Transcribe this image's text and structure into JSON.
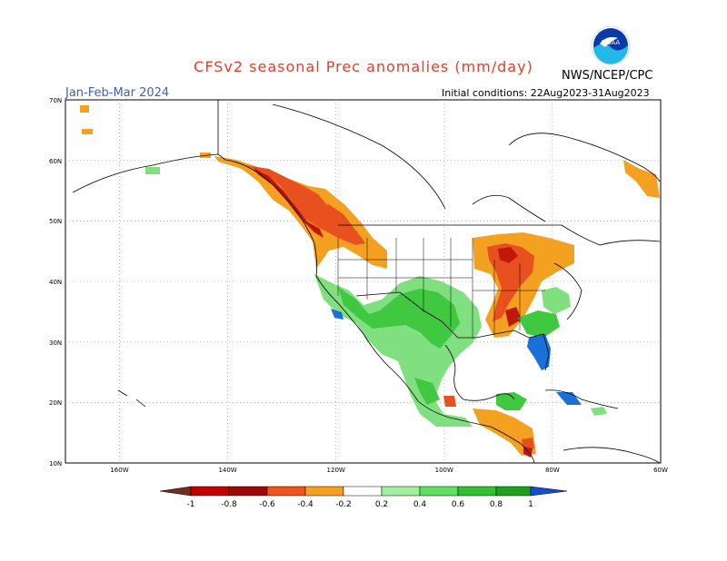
{
  "header": {
    "title": "CFSv2 seasonal Prec anomalies (mm/day)",
    "season": "Jan-Feb-Mar 2024",
    "initial_conditions": "Initial conditions: 22Aug2023-31Aug2023",
    "agency": "NWS/NCEP/CPC",
    "logo_text": "NOAA"
  },
  "map": {
    "lat_labels": [
      "70N",
      "60N",
      "50N",
      "40N",
      "30N",
      "20N",
      "10N"
    ],
    "lon_labels": [
      "160W",
      "140W",
      "120W",
      "100W",
      "80W",
      "60W"
    ]
  },
  "legend": {
    "labels": [
      "-1",
      "-0.8",
      "-0.6",
      "-0.4",
      "-0.2",
      "0.2",
      "0.4",
      "0.6",
      "0.8",
      "1"
    ],
    "colors": [
      "#6e2f1e",
      "#c00000",
      "#e03010",
      "#f0541e",
      "#f5a020",
      "#ffffff",
      "#a0f0a0",
      "#60e060",
      "#30c030",
      "#20a020",
      "#1050d0"
    ]
  },
  "colors": {
    "dry_strong": "#c0180c",
    "dry_moderate": "#e85020",
    "dry_weak": "#f4a020",
    "wet_weak": "#80e080",
    "wet_moderate": "#40c840",
    "wet_strong": "#1a6fd8",
    "title": "#e0402a",
    "season": "#3d5fbf"
  }
}
